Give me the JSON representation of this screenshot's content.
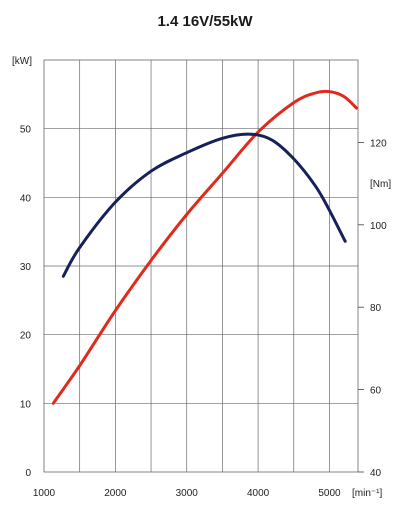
{
  "chart_data": {
    "type": "line",
    "title": "1.4 16V/55kW",
    "x_axis": {
      "unit": "[min⁻¹]",
      "range": [
        1000,
        5400
      ],
      "ticks": [
        1000,
        2000,
        3000,
        4000,
        5000
      ],
      "tick_labels": [
        "1000",
        "2000",
        "3000",
        "4000",
        "5000"
      ]
    },
    "y_left": {
      "unit": "[kW]",
      "range": [
        0,
        60
      ],
      "ticks": [
        0,
        10,
        20,
        30,
        40,
        50
      ],
      "tick_labels": [
        "0",
        "10",
        "20",
        "30",
        "40",
        "50"
      ]
    },
    "y_right": {
      "unit": "[Nm]",
      "range": [
        40,
        140
      ],
      "ticks": [
        40,
        60,
        80,
        100,
        120
      ],
      "tick_labels": [
        "40",
        "60",
        "80",
        "100",
        "120"
      ]
    },
    "grid": true,
    "series": [
      {
        "axis": "left",
        "color": "#e02a1b",
        "x": [
          1130,
          1500,
          2000,
          2500,
          3000,
          3500,
          4000,
          4500,
          4800,
          5000,
          5200,
          5380
        ],
        "y": [
          10,
          15.5,
          23.5,
          30.8,
          37.5,
          43.5,
          49.5,
          53.8,
          55.2,
          55.4,
          54.7,
          53
        ]
      },
      {
        "axis": "right",
        "color": "#16205a",
        "x": [
          1270,
          1500,
          2000,
          2500,
          3000,
          3500,
          3900,
          4200,
          4500,
          4800,
          5000,
          5220
        ],
        "y": [
          87.5,
          94.5,
          105.5,
          113,
          117.5,
          121,
          122,
          120.5,
          116,
          109.5,
          103.5,
          96
        ]
      }
    ]
  }
}
